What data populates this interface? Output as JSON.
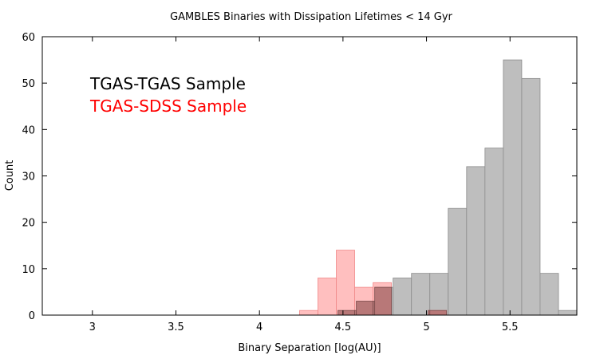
{
  "chart_data": {
    "type": "bar",
    "title": "GAMBLES Binaries with Dissipation Lifetimes < 14 Gyr",
    "xlabel": "Binary Separation [log(AU)]",
    "ylabel": "Count",
    "xlim": [
      2.7,
      5.9
    ],
    "ylim": [
      0,
      60
    ],
    "xticks": [
      3,
      3.5,
      4,
      4.5,
      5,
      5.5
    ],
    "xtick_labels": [
      "3",
      "3.5",
      "4",
      "4.5",
      "5",
      "5.5"
    ],
    "yticks": [
      0,
      10,
      20,
      30,
      40,
      50,
      60
    ],
    "ytick_labels": [
      "0",
      "10",
      "20",
      "30",
      "40",
      "50",
      "60"
    ],
    "grid": false,
    "bin_width": 0.11,
    "legend_placement": "upper-left",
    "series": [
      {
        "name": "TGAS-TGAS Sample",
        "color": "#000000",
        "fill": "#bebebe",
        "bins": [
          {
            "x0": 4.47,
            "value": 1
          },
          {
            "x0": 4.58,
            "value": 3
          },
          {
            "x0": 4.69,
            "value": 6
          },
          {
            "x0": 4.8,
            "value": 8
          },
          {
            "x0": 4.91,
            "value": 9
          },
          {
            "x0": 5.02,
            "value": 9
          },
          {
            "x0": 5.13,
            "value": 23
          },
          {
            "x0": 5.24,
            "value": 32
          },
          {
            "x0": 5.35,
            "value": 36
          },
          {
            "x0": 5.46,
            "value": 55
          },
          {
            "x0": 5.57,
            "value": 51
          },
          {
            "x0": 5.68,
            "value": 9
          },
          {
            "x0": 5.79,
            "value": 1
          }
        ]
      },
      {
        "name": "TGAS-SDSS Sample",
        "color": "#ff0000",
        "fill": "#ffaaaa",
        "bins": [
          {
            "x0": 4.24,
            "value": 1
          },
          {
            "x0": 4.35,
            "value": 8
          },
          {
            "x0": 4.46,
            "value": 14
          },
          {
            "x0": 4.57,
            "value": 6
          },
          {
            "x0": 4.68,
            "value": 7
          },
          {
            "x0": 4.79,
            "value": 0
          },
          {
            "x0": 4.9,
            "value": 0
          },
          {
            "x0": 5.01,
            "value": 1
          }
        ]
      }
    ],
    "overlap_fill": "#b87878"
  }
}
